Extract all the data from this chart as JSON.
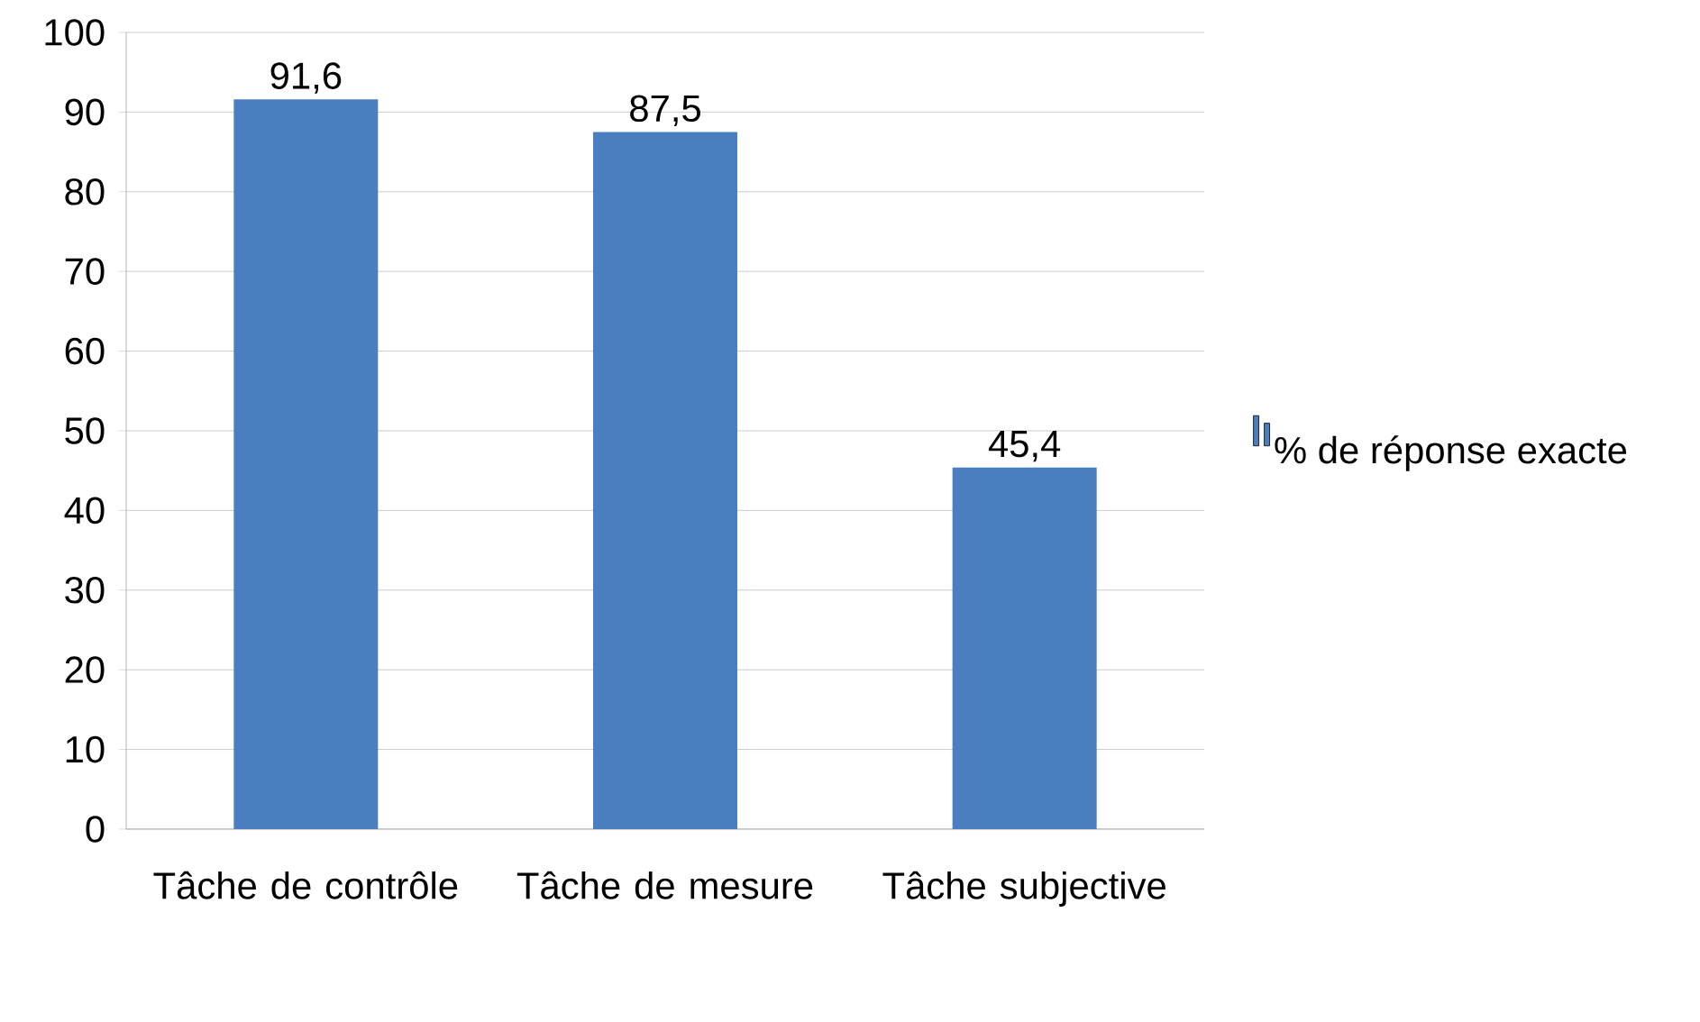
{
  "chart_data": {
    "type": "bar",
    "categories": [
      "Tâche de contrôle",
      "Tâche de mesure",
      "Tâche subjective"
    ],
    "series": [
      {
        "name": "% de réponse exacte",
        "color": "#4a7ebf",
        "values": [
          91.6,
          87.5,
          45.4
        ],
        "value_labels": [
          "91,6",
          "87,5",
          "45,4"
        ]
      }
    ],
    "ylim": [
      0,
      100
    ],
    "yticks": [
      0,
      10,
      20,
      30,
      40,
      50,
      60,
      70,
      80,
      90,
      100
    ],
    "grid": "y",
    "legend": "right"
  }
}
